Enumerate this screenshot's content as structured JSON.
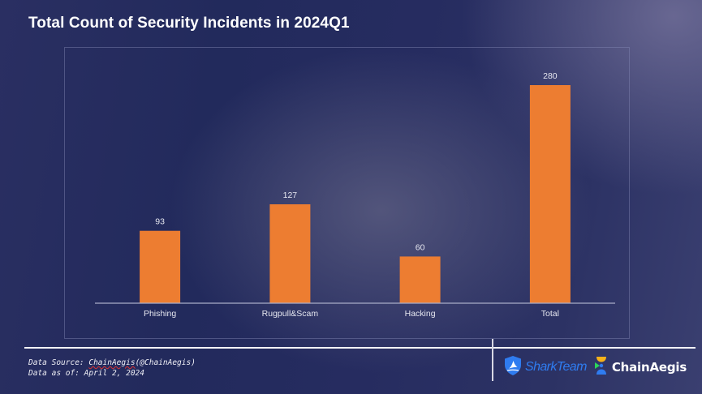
{
  "chart_data": {
    "type": "bar",
    "title": "Total Count of Security Incidents in 2024Q1",
    "categories": [
      "Phishing",
      "Rugpull&Scam",
      "Hacking",
      "Total"
    ],
    "values": [
      93,
      127,
      60,
      280
    ],
    "data_labels": [
      "93",
      "127",
      "60",
      "280"
    ],
    "xlabel": "",
    "ylabel": "",
    "ylim": [
      0,
      280
    ],
    "grid": false,
    "legend": "none",
    "bar_color": "#ed7d31"
  },
  "footer": {
    "source_prefix": "Data Source: ",
    "source_name": "ChainAegis",
    "source_handle": "(@ChainAegis)",
    "as_of": "Data as of: April 2, 2024"
  },
  "logos": {
    "sharkteam": "SharkTeam",
    "chainaegis": "ChainAegis"
  }
}
